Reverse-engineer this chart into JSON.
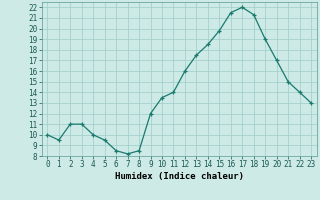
{
  "x": [
    0,
    1,
    2,
    3,
    4,
    5,
    6,
    7,
    8,
    9,
    10,
    11,
    12,
    13,
    14,
    15,
    16,
    17,
    18,
    19,
    20,
    21,
    22,
    23
  ],
  "y": [
    10,
    9.5,
    11,
    11,
    10,
    9.5,
    8.5,
    8.2,
    8.5,
    12,
    13.5,
    14,
    16,
    17.5,
    18.5,
    19.8,
    21.5,
    22,
    21.3,
    19,
    17,
    15,
    14,
    13
  ],
  "line_color": "#1a7a6e",
  "marker": "+",
  "marker_color": "#1a7a6e",
  "bg_color": "#cdeae6",
  "grid_color": "#9ecdc8",
  "xlabel": "Humidex (Indice chaleur)",
  "xlim": [
    -0.5,
    23.5
  ],
  "ylim": [
    8,
    22.5
  ],
  "yticks": [
    8,
    9,
    10,
    11,
    12,
    13,
    14,
    15,
    16,
    17,
    18,
    19,
    20,
    21,
    22
  ],
  "xticks": [
    0,
    1,
    2,
    3,
    4,
    5,
    6,
    7,
    8,
    9,
    10,
    11,
    12,
    13,
    14,
    15,
    16,
    17,
    18,
    19,
    20,
    21,
    22,
    23
  ],
  "label_fontsize": 6.5,
  "tick_fontsize": 5.5
}
